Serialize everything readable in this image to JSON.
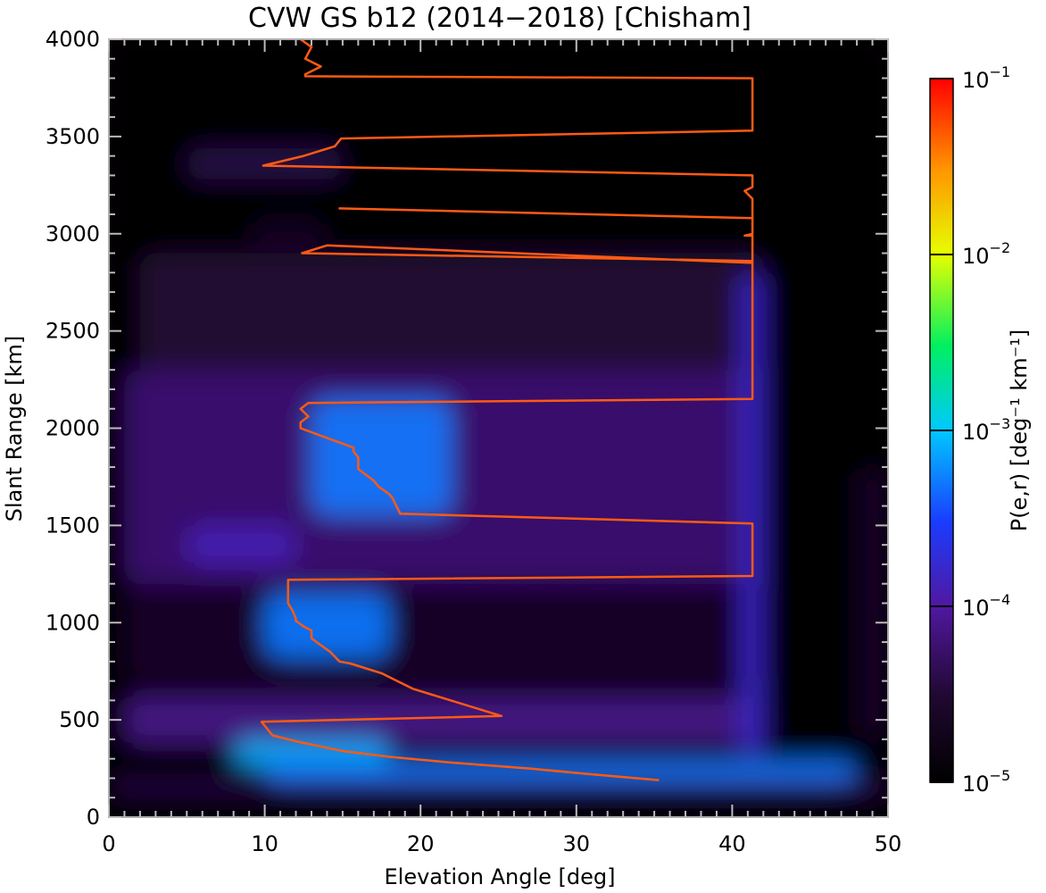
{
  "chart_data": {
    "type": "heatmap",
    "title": "CVW GS b12 (2014−2018) [Chisham]",
    "xlabel": "Elevation Angle [deg]",
    "ylabel": "Slant Range [km]",
    "xlim": [
      0,
      50
    ],
    "ylim": [
      0,
      4000
    ],
    "x_ticks": [
      "0",
      "10",
      "20",
      "30",
      "40",
      "50"
    ],
    "y_ticks": [
      "0",
      "500",
      "1000",
      "1500",
      "2000",
      "2500",
      "3000",
      "3500",
      "4000"
    ],
    "colorbar": {
      "label": "P(e,r) [deg⁻¹ km⁻¹]",
      "scale": "log",
      "range": [
        1e-05,
        0.1
      ],
      "ticks": [
        {
          "value": 1e-05,
          "base": "10",
          "exp": "−5"
        },
        {
          "value": 0.0001,
          "base": "10",
          "exp": "−4"
        },
        {
          "value": 0.001,
          "base": "10",
          "exp": "−3"
        },
        {
          "value": 0.01,
          "base": "10",
          "exp": "−2"
        },
        {
          "value": 0.1,
          "base": "10",
          "exp": "−1"
        }
      ]
    },
    "heatmap_features": [
      {
        "e0": 0,
        "e1": 50,
        "r0": 0,
        "r1": 4000,
        "log_p": -5.1
      },
      {
        "e0": 2,
        "e1": 42,
        "r0": 2300,
        "r1": 2900,
        "log_p": -4.5
      },
      {
        "e0": 1,
        "e1": 42,
        "r0": 1200,
        "r1": 2300,
        "log_p": -4.2
      },
      {
        "e0": 1,
        "e1": 42,
        "r0": 700,
        "r1": 1200,
        "log_p": -4.6
      },
      {
        "e0": 1,
        "e1": 42,
        "r0": 380,
        "r1": 620,
        "log_p": -4.1
      },
      {
        "e0": 5,
        "e1": 15,
        "r0": 3280,
        "r1": 3440,
        "log_p": -4.4
      },
      {
        "e0": 9,
        "e1": 14,
        "r0": 2940,
        "r1": 3060,
        "log_p": -4.6
      },
      {
        "e0": 13,
        "e1": 22,
        "r0": 1550,
        "r1": 2150,
        "log_p": -3.3
      },
      {
        "e0": 10,
        "e1": 18,
        "r0": 820,
        "r1": 1150,
        "log_p": -3.3
      },
      {
        "e0": 5,
        "e1": 12,
        "r0": 1300,
        "r1": 1500,
        "log_p": -3.9
      },
      {
        "e0": 8,
        "e1": 18,
        "r0": 260,
        "r1": 400,
        "log_p": -3.1
      },
      {
        "e0": 10,
        "e1": 48,
        "r0": 180,
        "r1": 290,
        "log_p": -3.3
      },
      {
        "e0": 40.5,
        "e1": 42,
        "r0": 300,
        "r1": 2800,
        "log_p": -3.8
      },
      {
        "e0": 48,
        "e1": 50,
        "r0": 400,
        "r1": 1800,
        "log_p": -4.6
      },
      {
        "e0": 0,
        "e1": 50,
        "r0": 130,
        "r1": 180,
        "log_p": -4.3
      }
    ],
    "series": [
      {
        "type": "line",
        "color": "#ff5a14",
        "x": [
          12.3,
          13.0,
          12.6,
          13.6,
          12.6,
          12.6,
          41.3,
          41.3,
          14.9,
          14.5,
          12.5,
          9.9,
          41.3,
          41.3,
          40.8,
          41.3,
          41.3,
          14.8,
          41.3,
          41.3,
          40.8,
          41.3,
          41.3,
          14.0,
          12.4,
          41.3,
          41.3,
          12.8,
          12.3,
          12.8,
          12.3,
          12.3,
          14.0,
          15.7,
          15.7,
          16.0,
          16.0,
          16.5,
          17.0,
          17.3,
          18.0,
          18.2,
          18.7,
          41.3,
          41.3,
          11.5,
          11.5,
          11.8,
          12.0,
          12.0,
          12.5,
          13.0,
          13.0,
          13.5,
          14.2,
          14.8,
          15.5,
          17.5,
          19.5,
          25.2,
          9.8,
          10.5,
          12.0,
          15.0,
          18.0,
          22.0,
          27.0,
          31.0,
          35.3
        ],
        "y": [
          4000,
          3960,
          3900,
          3860,
          3820,
          3810,
          3800,
          3530,
          3490,
          3450,
          3400,
          3350,
          3300,
          3240,
          3220,
          3180,
          3080,
          3130,
          3080,
          3000,
          2990,
          2990,
          2850,
          2940,
          2900,
          2860,
          2150,
          2130,
          2100,
          2060,
          2030,
          2000,
          1950,
          1900,
          1880,
          1850,
          1790,
          1760,
          1730,
          1700,
          1660,
          1640,
          1560,
          1510,
          1240,
          1220,
          1100,
          1060,
          1020,
          1010,
          980,
          960,
          920,
          890,
          850,
          800,
          790,
          740,
          660,
          520,
          490,
          420,
          390,
          340,
          310,
          280,
          250,
          220,
          190
        ]
      }
    ]
  }
}
